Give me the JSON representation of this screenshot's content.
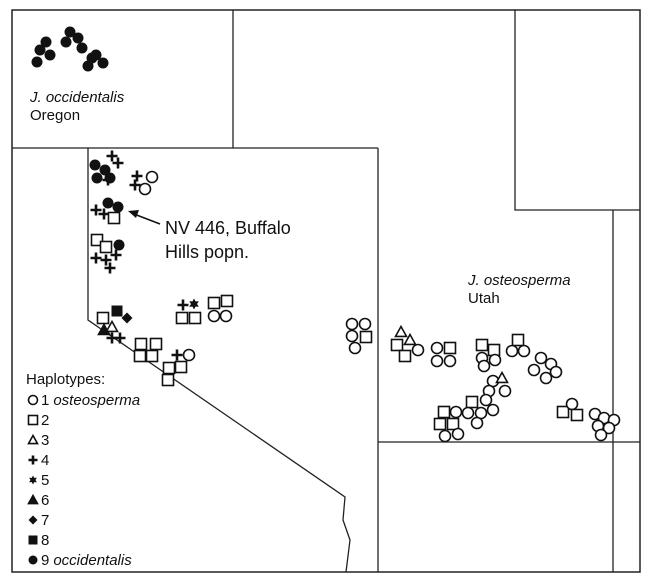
{
  "labels": {
    "west_species": "J. occidentalis",
    "west_state": "Oregon",
    "callout_line1": "NV 446, Buffalo",
    "callout_line2": "Hills popn.",
    "east_species": "J. osteosperma",
    "east_state": "Utah"
  },
  "legend": {
    "title": "Haplotypes:",
    "items": [
      {
        "number": 1,
        "name": "osteosperma"
      },
      {
        "number": 2
      },
      {
        "number": 3
      },
      {
        "number": 4
      },
      {
        "number": 5
      },
      {
        "number": 6
      },
      {
        "number": 7
      },
      {
        "number": 8
      },
      {
        "number": 9,
        "name": "occidentalis"
      }
    ]
  }
}
